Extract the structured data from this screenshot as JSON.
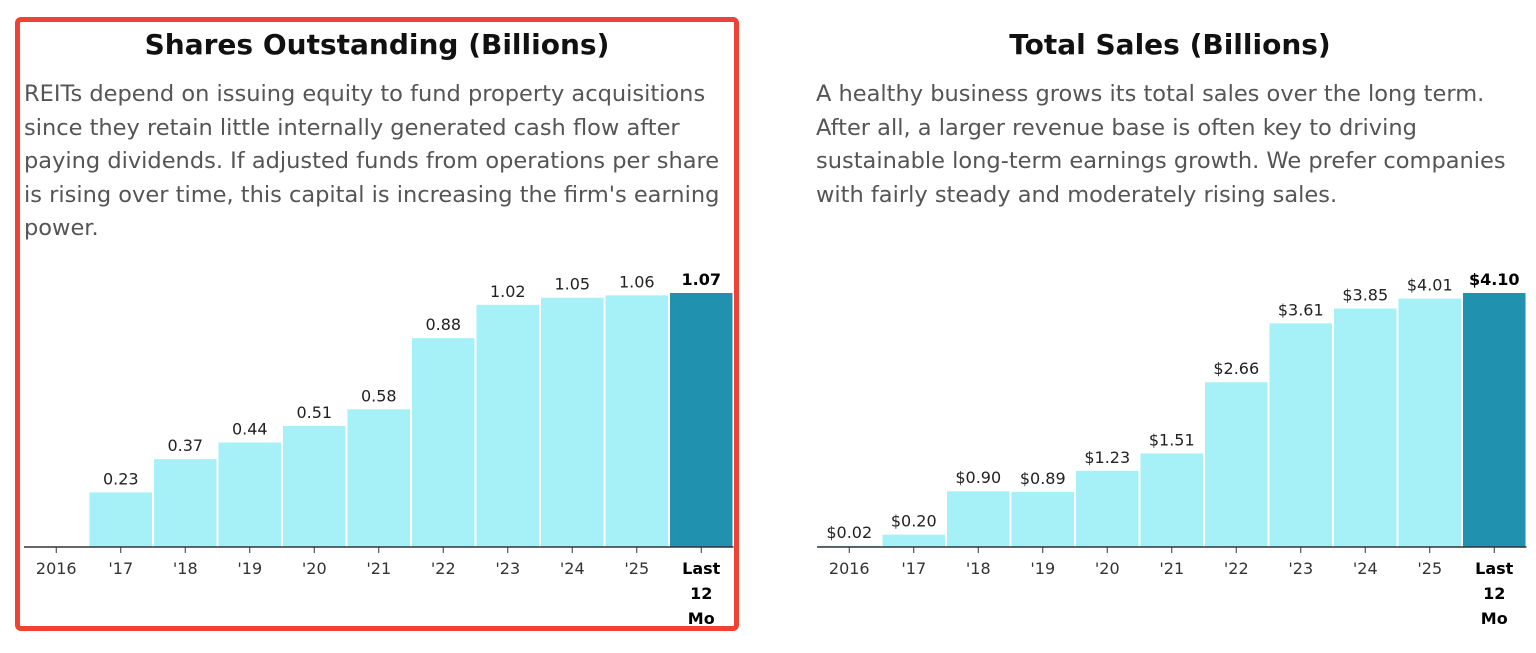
{
  "colors": {
    "frame": "#ef4136",
    "bar": "#a6f0f7",
    "bar_highlight": "#2191b0",
    "axis": "#333333"
  },
  "left": {
    "title": "Shares Outstanding (Billions)",
    "description": "REITs depend on issuing equity to fund property acquisitions since they retain little internally generated cash flow after paying dividends. If adjusted funds from operations per share is rising over time, this capital is increasing the firm's earning power."
  },
  "right": {
    "title": "Total Sales (Billions)",
    "description": "A healthy business grows its total sales over the long term. After all, a larger revenue base is often key to driving sustainable long-term earnings growth. We prefer companies with fairly steady and moderately rising sales."
  },
  "chart_data": [
    {
      "type": "bar",
      "title": "Shares Outstanding (Billions)",
      "categories": [
        "2016",
        "'17",
        "'18",
        "'19",
        "'20",
        "'21",
        "'22",
        "'23",
        "'24",
        "'25",
        "Last 12 Mo"
      ],
      "values": [
        0,
        0.23,
        0.37,
        0.44,
        0.51,
        0.58,
        0.88,
        1.02,
        1.05,
        1.06,
        1.07
      ],
      "labels": [
        "",
        "0.23",
        "0.37",
        "0.44",
        "0.51",
        "0.58",
        "0.88",
        "1.02",
        "1.05",
        "1.06",
        "1.07"
      ],
      "highlight_index": 10,
      "ylim": [
        0,
        1.07
      ]
    },
    {
      "type": "bar",
      "title": "Total Sales (Billions)",
      "categories": [
        "2016",
        "'17",
        "'18",
        "'19",
        "'20",
        "'21",
        "'22",
        "'23",
        "'24",
        "'25",
        "Last 12 Mo"
      ],
      "values": [
        0.02,
        0.2,
        0.9,
        0.89,
        1.23,
        1.51,
        2.66,
        3.61,
        3.85,
        4.01,
        4.1
      ],
      "labels": [
        "$0.02",
        "$0.20",
        "$0.90",
        "$0.89",
        "$1.23",
        "$1.51",
        "$2.66",
        "$3.61",
        "$3.85",
        "$4.01",
        "$4.10"
      ],
      "highlight_index": 10,
      "ylim": [
        0,
        4.1
      ]
    }
  ]
}
